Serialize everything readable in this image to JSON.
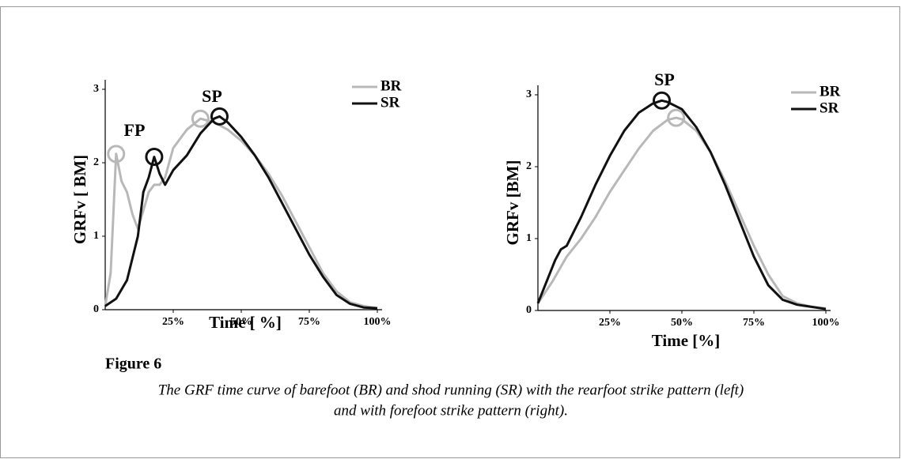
{
  "chart_data": [
    {
      "type": "line",
      "xlabel": "Time [ %]",
      "ylabel": "GRFv [ BM]",
      "annotations": [
        "FP",
        "SP"
      ],
      "xlim": [
        0,
        100
      ],
      "ylim": [
        0,
        3
      ],
      "yticks": [
        0,
        1,
        2,
        3
      ],
      "xticks": [
        {
          "value": 25,
          "label": "25%"
        },
        {
          "value": 50,
          "label": "50%"
        },
        {
          "value": 75,
          "label": "75%"
        },
        {
          "value": 100,
          "label": "100%"
        }
      ],
      "legend": "upper right",
      "series": [
        {
          "name": "BR",
          "color": "#b8b8b8",
          "circled_x": [
            4,
            35
          ],
          "x": [
            0,
            2,
            4,
            6,
            8,
            10,
            12,
            14,
            16,
            18,
            20,
            22,
            25,
            30,
            35,
            40,
            45,
            50,
            55,
            60,
            65,
            70,
            75,
            80,
            85,
            90,
            95,
            100
          ],
          "values": [
            0.05,
            0.5,
            2.12,
            1.75,
            1.6,
            1.3,
            1.1,
            1.35,
            1.6,
            1.7,
            1.7,
            1.8,
            2.2,
            2.45,
            2.6,
            2.55,
            2.45,
            2.3,
            2.1,
            1.85,
            1.55,
            1.2,
            0.85,
            0.5,
            0.25,
            0.1,
            0.05,
            0.02
          ]
        },
        {
          "name": "SR",
          "color": "#111111",
          "circled_x": [
            18,
            42
          ],
          "x": [
            0,
            4,
            8,
            12,
            14,
            16,
            18,
            20,
            22,
            25,
            30,
            35,
            40,
            42,
            45,
            50,
            55,
            60,
            65,
            70,
            75,
            80,
            85,
            90,
            95,
            100
          ],
          "values": [
            0.05,
            0.15,
            0.4,
            1.0,
            1.6,
            1.8,
            2.08,
            1.85,
            1.7,
            1.9,
            2.1,
            2.4,
            2.6,
            2.63,
            2.55,
            2.35,
            2.1,
            1.8,
            1.45,
            1.1,
            0.75,
            0.45,
            0.2,
            0.08,
            0.03,
            0.02
          ]
        }
      ]
    },
    {
      "type": "line",
      "xlabel": "Time [%]",
      "ylabel": "GRFv [BM]",
      "annotations": [
        "SP"
      ],
      "xlim": [
        0,
        100
      ],
      "ylim": [
        0,
        3
      ],
      "yticks": [
        0,
        1,
        2,
        3
      ],
      "xticks": [
        {
          "value": 25,
          "label": "25%"
        },
        {
          "value": 50,
          "label": "50%"
        },
        {
          "value": 75,
          "label": "75%"
        },
        {
          "value": 100,
          "label": "100%"
        }
      ],
      "legend": "upper right",
      "series": [
        {
          "name": "BR",
          "color": "#b8b8b8",
          "circled_x": [
            48
          ],
          "x": [
            0,
            5,
            10,
            15,
            20,
            25,
            30,
            35,
            40,
            45,
            48,
            50,
            55,
            60,
            65,
            70,
            75,
            80,
            85,
            90,
            95,
            100
          ],
          "values": [
            0.1,
            0.4,
            0.75,
            1.0,
            1.3,
            1.65,
            1.95,
            2.25,
            2.5,
            2.65,
            2.68,
            2.66,
            2.5,
            2.2,
            1.8,
            1.35,
            0.9,
            0.5,
            0.2,
            0.1,
            0.05,
            0.03
          ]
        },
        {
          "name": "SR",
          "color": "#111111",
          "circled_x": [
            43
          ],
          "x": [
            0,
            3,
            6,
            8,
            10,
            15,
            20,
            25,
            30,
            35,
            40,
            43,
            45,
            50,
            55,
            60,
            65,
            70,
            75,
            80,
            85,
            90,
            95,
            100
          ],
          "values": [
            0.1,
            0.4,
            0.7,
            0.85,
            0.9,
            1.3,
            1.75,
            2.15,
            2.5,
            2.75,
            2.88,
            2.92,
            2.9,
            2.8,
            2.55,
            2.2,
            1.75,
            1.25,
            0.75,
            0.35,
            0.15,
            0.08,
            0.05,
            0.02
          ]
        }
      ]
    }
  ],
  "figure": {
    "label": "Figure 6",
    "caption": [
      "The GRF time curve of barefoot (BR) and shod running (SR) with the rearfoot strike pattern (left)",
      "and with forefoot strike pattern (right)."
    ]
  }
}
